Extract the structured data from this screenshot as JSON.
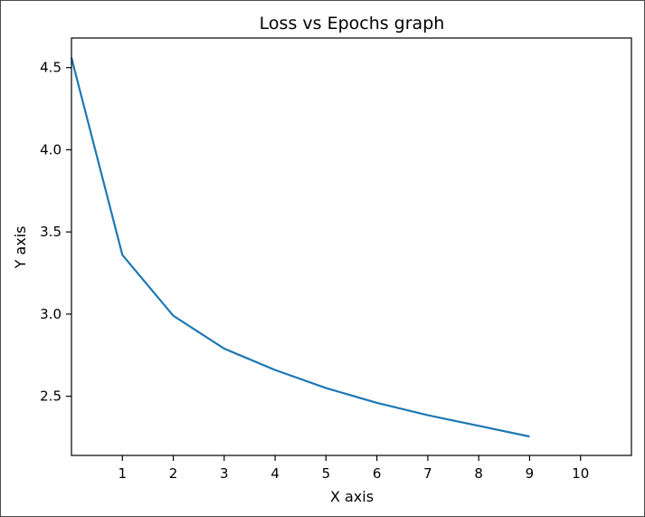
{
  "chart_data": {
    "type": "line",
    "title": "Loss vs Epochs graph",
    "xlabel": "X axis",
    "ylabel": "Y axis",
    "xlim": [
      0,
      11
    ],
    "ylim": [
      2.14,
      4.68
    ],
    "xticks": [
      1,
      2,
      3,
      4,
      5,
      6,
      7,
      8,
      9,
      10
    ],
    "yticks": [
      2.5,
      3.0,
      3.5,
      4.0,
      4.5
    ],
    "ytick_labels": [
      "2.5",
      "3.0",
      "3.5",
      "4.0",
      "4.5"
    ],
    "grid": false,
    "legend": false,
    "series": [
      {
        "color": "#1f77b4",
        "x": [
          0,
          1,
          2,
          3,
          4,
          5,
          6,
          7,
          8,
          9
        ],
        "y": [
          4.56,
          3.36,
          2.99,
          2.79,
          2.66,
          2.55,
          2.46,
          2.385,
          2.32,
          2.255
        ]
      }
    ]
  }
}
